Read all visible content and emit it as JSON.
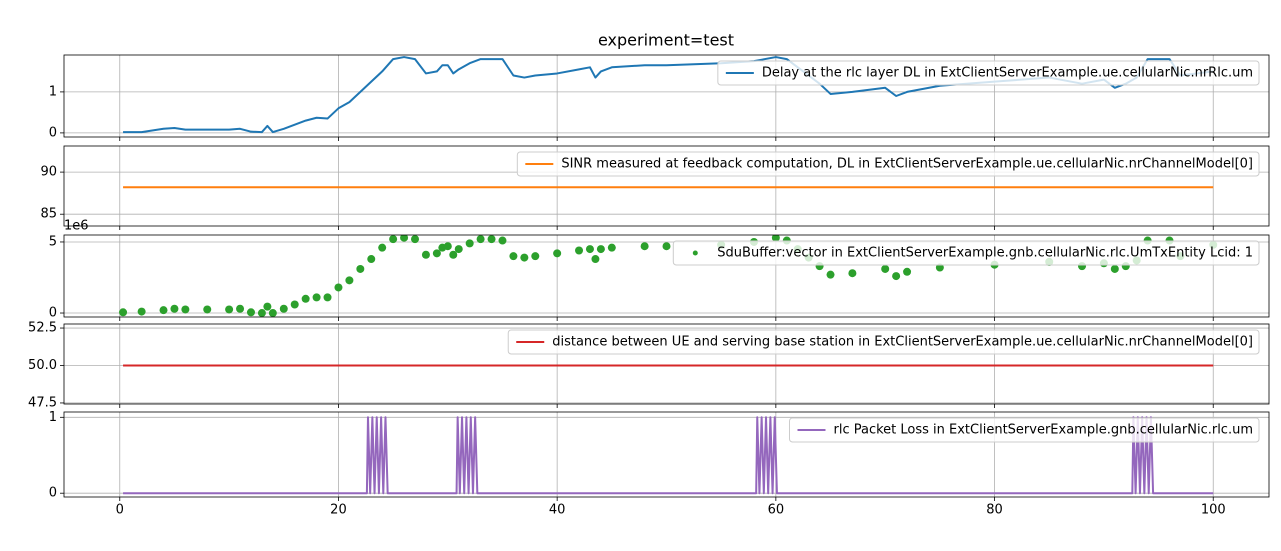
{
  "chart_data": [
    {
      "type": "line",
      "title": "experiment=test",
      "xlim": [
        -5.1,
        105.1
      ],
      "xticks": [
        0,
        20,
        40,
        60,
        80,
        100
      ],
      "ylim": [
        -0.1,
        1.9
      ],
      "yticks": [
        0,
        1
      ],
      "grid": true,
      "legend": "upper right",
      "series": [
        {
          "name": "Delay at the rlc layer DL in ExtClientServerExample.ue.cellularNic.nrRlc.um",
          "color": "#1f77b4",
          "x": [
            0.3,
            2,
            4,
            5,
            6,
            8,
            10,
            11,
            12,
            13,
            13.5,
            14,
            15,
            16,
            17,
            18,
            19,
            20,
            21,
            22,
            23,
            24,
            25,
            26,
            27,
            28,
            29,
            29.5,
            30,
            30.5,
            31,
            32,
            33,
            34,
            35,
            36,
            37,
            38,
            40,
            42,
            43,
            43.5,
            44,
            45,
            48,
            50,
            55,
            58,
            60,
            61,
            62,
            63,
            64,
            65,
            67,
            70,
            71,
            72,
            75,
            80,
            85,
            88,
            90,
            91,
            92,
            93,
            94,
            96,
            97,
            100
          ],
          "values": [
            0.02,
            0.02,
            0.1,
            0.12,
            0.08,
            0.08,
            0.08,
            0.1,
            0.03,
            0.02,
            0.17,
            0.02,
            0.1,
            0.2,
            0.3,
            0.37,
            0.35,
            0.6,
            0.75,
            1.0,
            1.25,
            1.5,
            1.8,
            1.85,
            1.8,
            1.45,
            1.5,
            1.65,
            1.65,
            1.45,
            1.55,
            1.7,
            1.8,
            1.8,
            1.8,
            1.4,
            1.35,
            1.4,
            1.45,
            1.55,
            1.6,
            1.35,
            1.5,
            1.6,
            1.65,
            1.65,
            1.7,
            1.75,
            1.85,
            1.8,
            1.6,
            1.4,
            1.2,
            0.95,
            1.0,
            1.1,
            0.9,
            1.0,
            1.15,
            1.25,
            1.35,
            1.2,
            1.3,
            1.1,
            1.2,
            1.35,
            1.8,
            1.8,
            1.4,
            1.5
          ]
        }
      ]
    },
    {
      "type": "line",
      "xlim": [
        -5.1,
        105.1
      ],
      "xticks": [
        0,
        20,
        40,
        60,
        80,
        100
      ],
      "ylim": [
        83.6,
        93.1
      ],
      "yticks": [
        85,
        90
      ],
      "grid": true,
      "legend": "upper right",
      "series": [
        {
          "name": "SINR measured at feedback computation, DL in ExtClientServerExample.ue.cellularNic.nrChannelModel[0]",
          "color": "#ff7f0e",
          "x": [
            0.3,
            100
          ],
          "values": [
            88.2,
            88.2
          ]
        }
      ]
    },
    {
      "type": "scatter",
      "offset_text": "1e6",
      "xlim": [
        -5.1,
        105.1
      ],
      "xticks": [
        0,
        20,
        40,
        60,
        80,
        100
      ],
      "ylim": [
        -0.28,
        5.49
      ],
      "yticks": [
        0,
        5
      ],
      "grid": true,
      "legend": "upper right",
      "series": [
        {
          "name": "SduBuffer:vector in ExtClientServerExample.gnb.cellularNic.rlc.UmTxEntity Lcid: 1",
          "color": "#2ca02c",
          "x": [
            0.3,
            2,
            4,
            5,
            6,
            8,
            10,
            11,
            12,
            13,
            13.5,
            14,
            15,
            16,
            17,
            18,
            19,
            20,
            21,
            22,
            23,
            24,
            25,
            26,
            27,
            28,
            29,
            29.5,
            30,
            30.5,
            31,
            32,
            33,
            34,
            35,
            36,
            37,
            38,
            40,
            42,
            43,
            43.5,
            44,
            45,
            48,
            50,
            55,
            58,
            60,
            61,
            62,
            63,
            64,
            65,
            67,
            70,
            71,
            72,
            75,
            80,
            85,
            88,
            90,
            91,
            92,
            93,
            94,
            96,
            97,
            100
          ],
          "values": [
            0.05,
            0.1,
            0.2,
            0.3,
            0.25,
            0.25,
            0.25,
            0.3,
            0.05,
            0.0,
            0.45,
            0.0,
            0.3,
            0.6,
            1.0,
            1.1,
            1.1,
            1.8,
            2.3,
            3.1,
            3.8,
            4.6,
            5.2,
            5.3,
            5.2,
            4.1,
            4.2,
            4.6,
            4.7,
            4.1,
            4.5,
            4.9,
            5.2,
            5.2,
            5.1,
            4.0,
            3.9,
            4.0,
            4.2,
            4.4,
            4.5,
            3.8,
            4.5,
            4.6,
            4.7,
            4.7,
            4.8,
            5.0,
            5.3,
            5.1,
            4.5,
            3.9,
            3.3,
            2.7,
            2.8,
            3.1,
            2.6,
            2.9,
            3.2,
            3.4,
            3.6,
            3.3,
            3.5,
            3.1,
            3.3,
            3.7,
            5.1,
            5.1,
            4.0,
            4.8
          ]
        }
      ]
    },
    {
      "type": "line",
      "xlim": [
        -5.1,
        105.1
      ],
      "xticks": [
        0,
        20,
        40,
        60,
        80,
        100
      ],
      "ylim": [
        47.43,
        52.77
      ],
      "yticks": [
        47.5,
        {
          "value": 50,
          "label": "50.0"
        },
        52.5
      ],
      "grid": true,
      "legend": "upper right",
      "series": [
        {
          "name": "distance between UE and serving base station in ExtClientServerExample.ue.cellularNic.nrChannelModel[0]",
          "color": "#d62728",
          "x": [
            0.3,
            100
          ],
          "values": [
            50,
            50
          ]
        }
      ]
    },
    {
      "type": "line",
      "xlim": [
        -5.1,
        105.1
      ],
      "xticks": [
        0,
        20,
        40,
        60,
        80,
        100
      ],
      "ylim": [
        -0.05,
        1.07
      ],
      "yticks": [
        0,
        1
      ],
      "grid": true,
      "legend": "upper right",
      "series": [
        {
          "name": "rlc Packet Loss in ExtClientServerExample.gnb.cellularNic.rlc.um",
          "color": "#9467bd",
          "x": [
            0.3,
            22.6,
            22.7,
            22.9,
            23.1,
            23.3,
            23.5,
            23.7,
            23.9,
            24.1,
            24.3,
            24.5,
            30.8,
            30.9,
            31.1,
            31.3,
            31.5,
            31.7,
            31.9,
            32.1,
            32.3,
            32.5,
            32.7,
            58.2,
            58.3,
            58.5,
            58.7,
            58.9,
            59.1,
            59.3,
            59.5,
            59.7,
            59.9,
            60.1,
            92.6,
            92.7,
            92.9,
            93.1,
            93.3,
            93.5,
            93.7,
            93.9,
            94.1,
            94.3,
            94.5,
            100
          ],
          "values": [
            0,
            0,
            1,
            0,
            1,
            0,
            1,
            0,
            1,
            0,
            1,
            0,
            0,
            1,
            0,
            1,
            0,
            1,
            0,
            1,
            0,
            1,
            0,
            0,
            1,
            0,
            1,
            0,
            1,
            0,
            1,
            0,
            1,
            0,
            0,
            1,
            0,
            1,
            0,
            1,
            0,
            1,
            0,
            1,
            0,
            0
          ]
        }
      ]
    }
  ]
}
